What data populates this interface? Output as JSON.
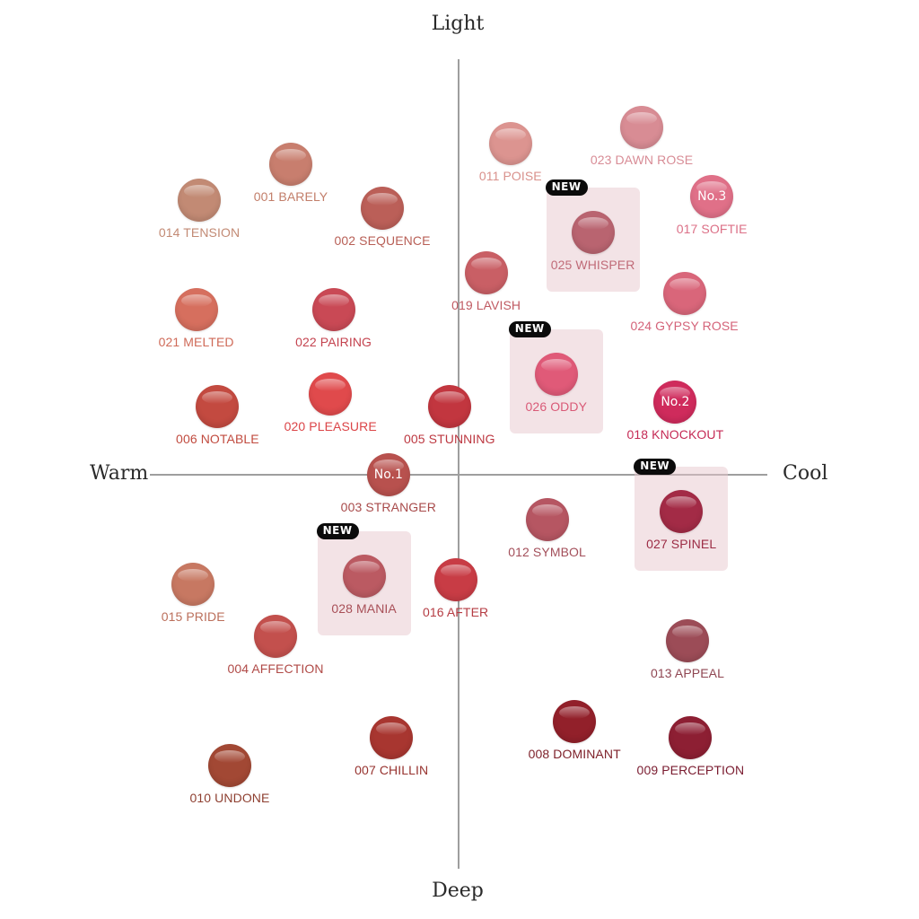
{
  "chart_data": {
    "type": "scatter",
    "axes": {
      "top": "Light",
      "bottom": "Deep",
      "left": "Warm",
      "right": "Cool"
    },
    "new_badge_label": "NEW",
    "points": [
      {
        "label": "001 BARELY",
        "x": -0.55,
        "y": 0.77,
        "color": "#c87e6e",
        "label_color": "#c27e6a"
      },
      {
        "label": "002 SEQUENCE",
        "x": -0.25,
        "y": 0.66,
        "color": "#bb5f58",
        "label_color": "#b85f56"
      },
      {
        "label": "014 TENSION",
        "x": -0.85,
        "y": 0.68,
        "color": "#c28a74",
        "label_color": "#c28a74"
      },
      {
        "label": "011 POISE",
        "x": 0.17,
        "y": 0.82,
        "color": "#dc9490",
        "label_color": "#d9918c"
      },
      {
        "label": "023 DAWN ROSE",
        "x": 0.6,
        "y": 0.86,
        "color": "#d88c94",
        "label_color": "#d88c96"
      },
      {
        "label": "017 SOFTIE",
        "x": 0.83,
        "y": 0.69,
        "color": "#e07088",
        "label_color": "#dc7087",
        "rank": "No.3"
      },
      {
        "label": "025 WHISPER",
        "x": 0.44,
        "y": 0.6,
        "color": "#b96470",
        "label_color": "#c06b78",
        "new": true
      },
      {
        "label": "019 LAVISH",
        "x": 0.09,
        "y": 0.5,
        "color": "#c95f65",
        "label_color": "#c05a62"
      },
      {
        "label": "024 GYPSY ROSE",
        "x": 0.74,
        "y": 0.45,
        "color": "#d9667a",
        "label_color": "#d46379"
      },
      {
        "label": "021 MELTED",
        "x": -0.86,
        "y": 0.41,
        "color": "#d66f5e",
        "label_color": "#cf6a58"
      },
      {
        "label": "022 PAIRING",
        "x": -0.41,
        "y": 0.41,
        "color": "#c94955",
        "label_color": "#c4434f"
      },
      {
        "label": "026 ODDY",
        "x": 0.32,
        "y": 0.25,
        "color": "#e05a78",
        "label_color": "#d95a77",
        "new": true
      },
      {
        "label": "006 NOTABLE",
        "x": -0.79,
        "y": 0.17,
        "color": "#c34a40",
        "label_color": "#c14b3f"
      },
      {
        "label": "020 PLEASURE",
        "x": -0.42,
        "y": 0.2,
        "color": "#e04a4c",
        "label_color": "#db4447"
      },
      {
        "label": "005 STUNNING",
        "x": -0.03,
        "y": 0.17,
        "color": "#c2363f",
        "label_color": "#bd3841"
      },
      {
        "label": "018 KNOCKOUT",
        "x": 0.71,
        "y": 0.18,
        "color": "#cf2b5c",
        "label_color": "#c52a55",
        "rank": "No.2"
      },
      {
        "label": "003 STRANGER",
        "x": -0.23,
        "y": 0.0,
        "color": "#b8514e",
        "label_color": "#a84a4a",
        "rank": "No.1"
      },
      {
        "label": "012 SYMBOL",
        "x": 0.29,
        "y": -0.11,
        "color": "#b65662",
        "label_color": "#a34f5a"
      },
      {
        "label": "027 SPINEL",
        "x": 0.73,
        "y": -0.09,
        "color": "#a32b46",
        "label_color": "#9c2c45",
        "new": true
      },
      {
        "label": "015 PRIDE",
        "x": -0.87,
        "y": -0.27,
        "color": "#c77862",
        "label_color": "#bb6f5b"
      },
      {
        "label": "028 MANIA",
        "x": -0.31,
        "y": -0.25,
        "color": "#bb5a62",
        "label_color": "#a84f57",
        "new": true
      },
      {
        "label": "016 AFTER",
        "x": -0.01,
        "y": -0.26,
        "color": "#c83c45",
        "label_color": "#b53c43"
      },
      {
        "label": "004 AFFECTION",
        "x": -0.6,
        "y": -0.4,
        "color": "#c3504d",
        "label_color": "#b04a47"
      },
      {
        "label": "013 APPEAL",
        "x": 0.75,
        "y": -0.41,
        "color": "#9c4c57",
        "label_color": "#8f4652"
      },
      {
        "label": "007 CHILLIN",
        "x": -0.22,
        "y": -0.65,
        "color": "#a83630",
        "label_color": "#97332f"
      },
      {
        "label": "008 DOMINANT",
        "x": 0.38,
        "y": -0.61,
        "color": "#92202a",
        "label_color": "#7d1f28"
      },
      {
        "label": "009 PERCEPTION",
        "x": 0.76,
        "y": -0.65,
        "color": "#8d1f33",
        "label_color": "#7a1c30"
      },
      {
        "label": "010 UNDONE",
        "x": -0.75,
        "y": -0.72,
        "color": "#a24834",
        "label_color": "#8e3f30"
      }
    ]
  }
}
